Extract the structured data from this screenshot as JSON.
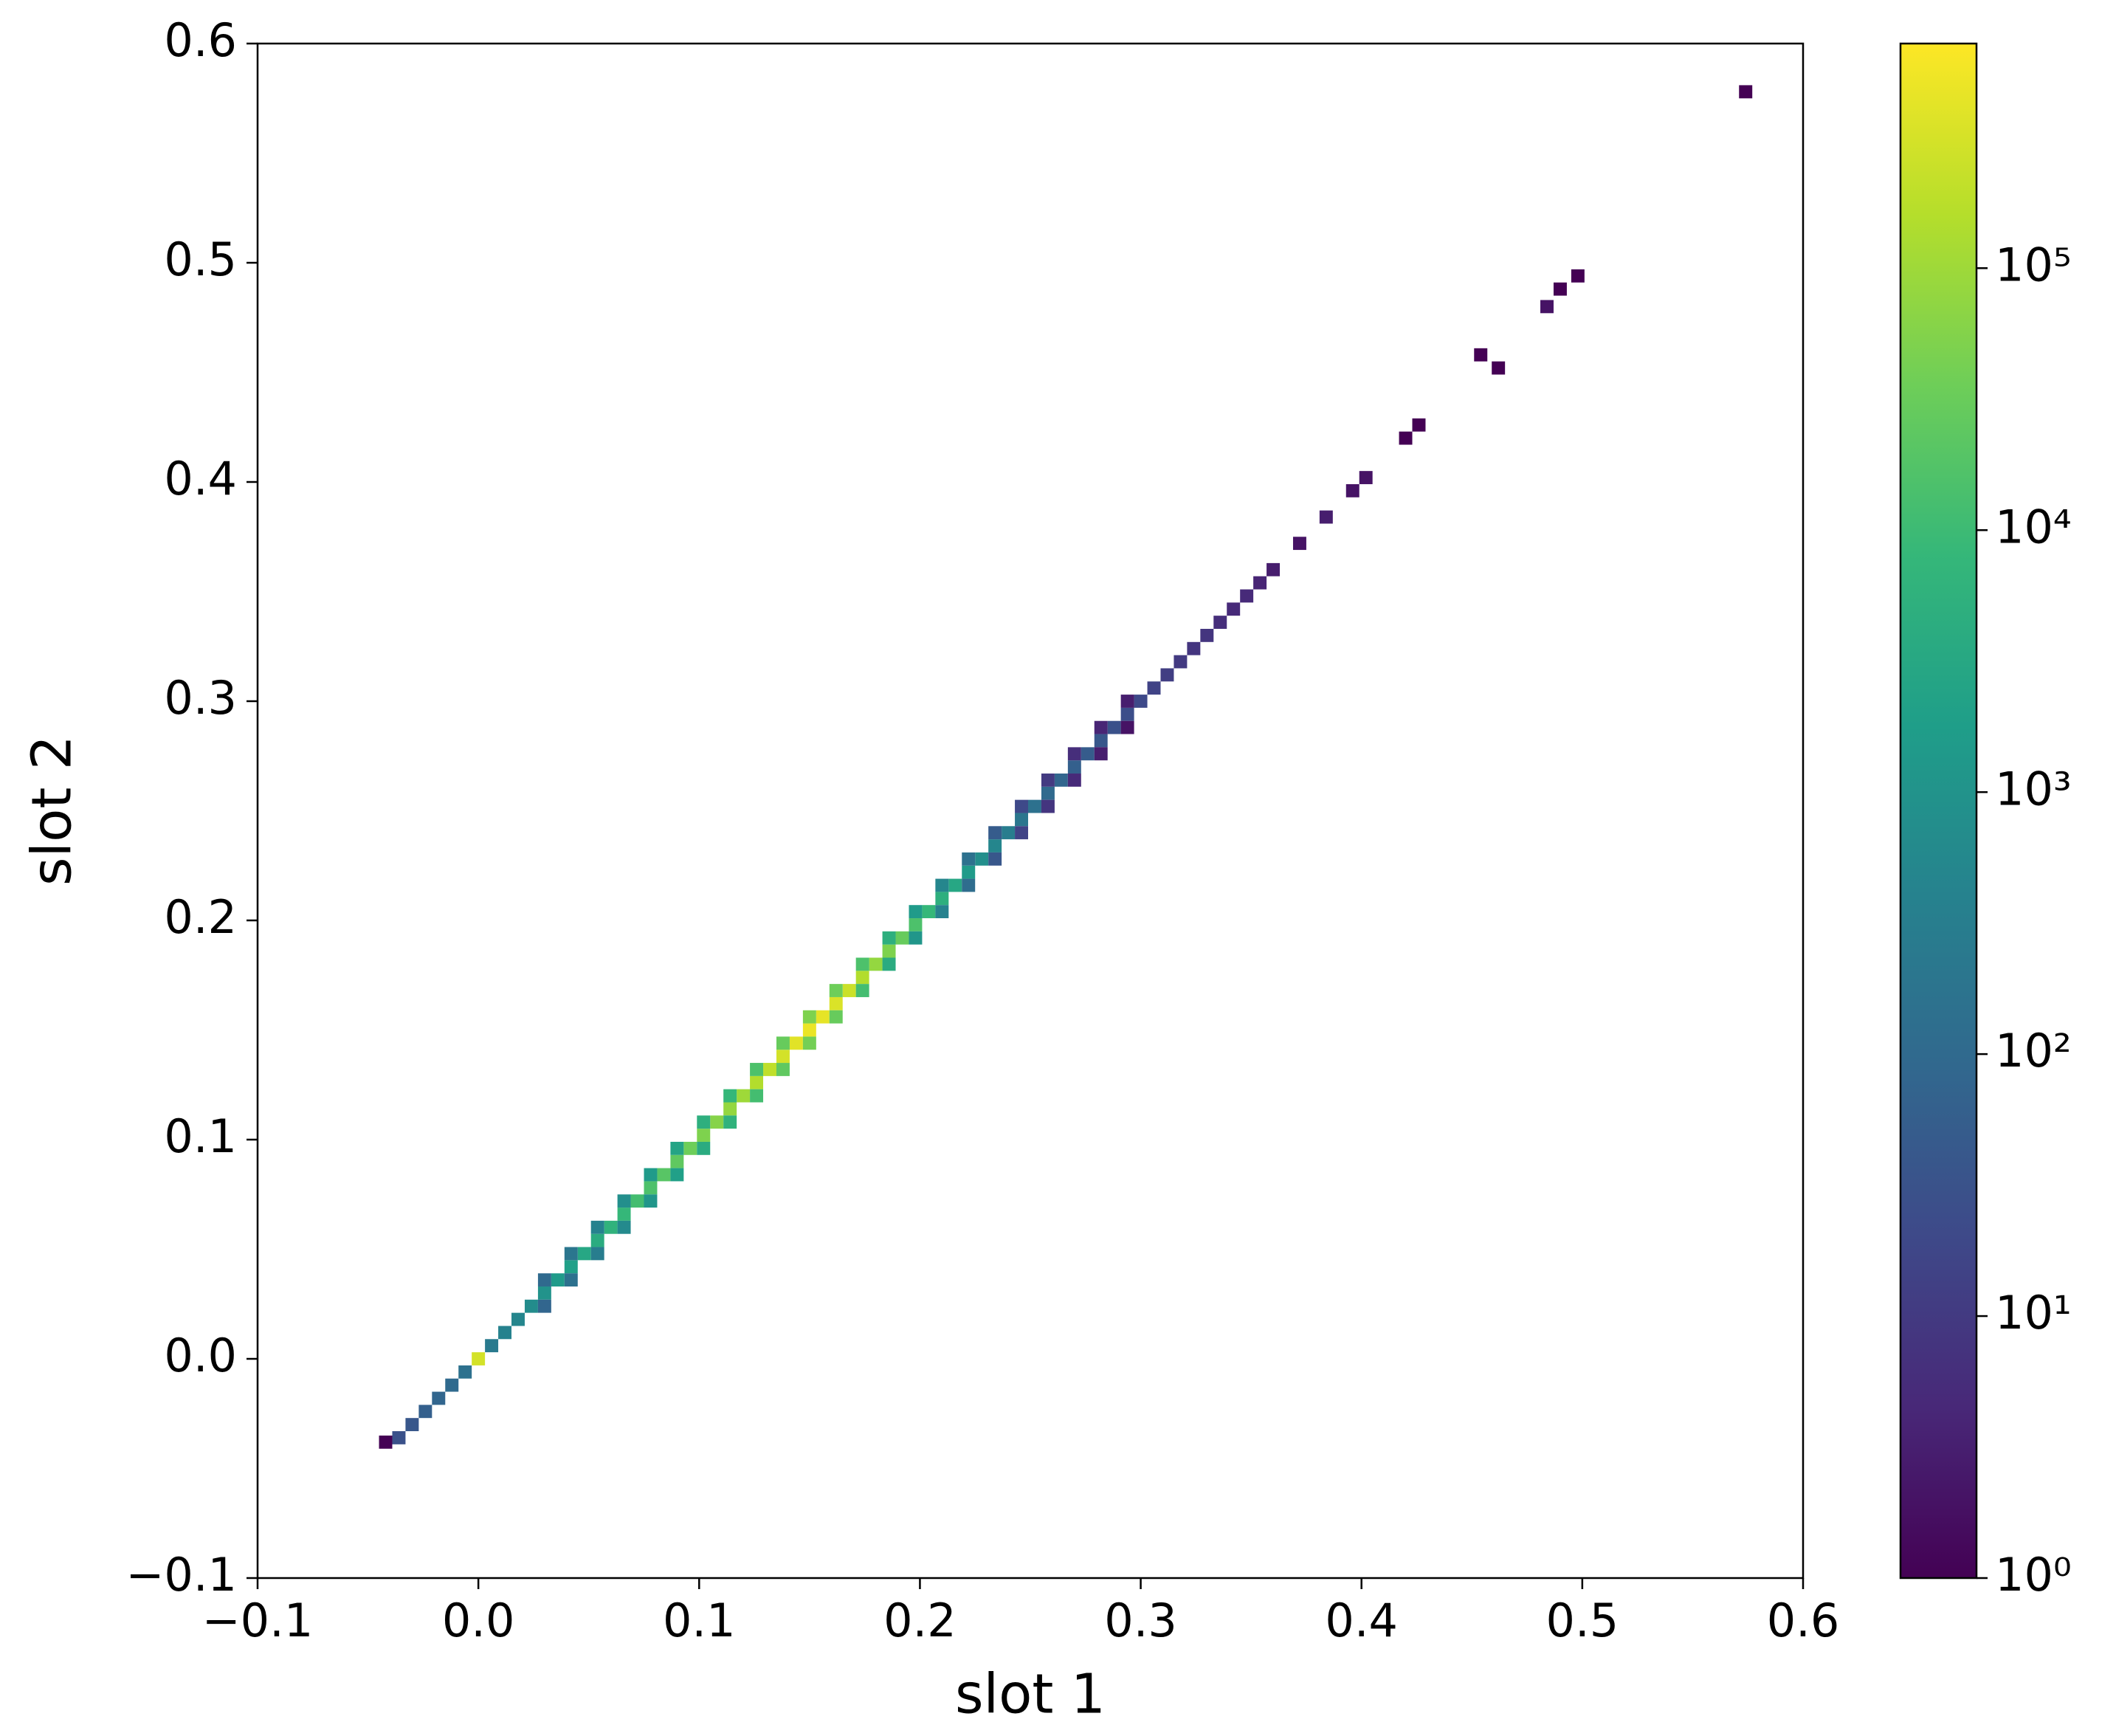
{
  "chart_data": {
    "type": "hist2d",
    "x_label": "slot 1",
    "y_label": "slot 2",
    "xlim": [
      -0.1,
      0.6
    ],
    "ylim": [
      -0.1,
      0.6
    ],
    "xticks": [
      {
        "value": -0.1,
        "label": "−0.1"
      },
      {
        "value": 0,
        "label": "0.0"
      },
      0.1,
      0.2,
      0.3,
      0.4,
      0.5,
      0.6
    ],
    "yticks": [
      {
        "value": -0.1,
        "label": "−0.1"
      },
      {
        "value": 0,
        "label": "0.0"
      },
      0.1,
      0.2,
      0.3,
      0.4,
      0.5,
      0.6
    ],
    "bin_width": 0.006,
    "colormap": "viridis",
    "color_scale": "log",
    "clim": [
      1,
      720000
    ],
    "cticks": [
      {
        "value": 1,
        "label": "10⁰"
      },
      {
        "value": 10,
        "label": "10¹"
      },
      {
        "value": 100,
        "label": "10²"
      },
      {
        "value": 1000,
        "label": "10³"
      },
      {
        "value": 10000,
        "label": "10⁴"
      },
      {
        "value": 100000,
        "label": "10⁵"
      }
    ],
    "x": [
      -0.036,
      -0.03,
      -0.024,
      -0.018,
      -0.012,
      -0.006,
      0.0,
      0.006,
      0.012,
      0.018,
      0.024,
      0.03,
      0.036,
      0.042,
      0.048,
      0.054,
      0.06,
      0.066,
      0.072,
      0.078,
      0.084,
      0.09,
      0.096,
      0.102,
      0.108,
      0.114,
      0.12,
      0.126,
      0.132,
      0.138,
      0.144,
      0.15,
      0.156,
      0.162,
      0.168,
      0.174,
      0.18,
      0.186,
      0.192,
      0.198,
      0.204,
      0.21,
      0.216,
      0.222,
      0.228,
      0.234,
      0.24,
      0.246,
      0.252,
      0.258,
      0.264,
      0.27,
      0.276,
      0.282,
      0.288,
      0.294,
      0.3,
      0.306,
      0.312,
      0.318,
      0.324,
      0.33,
      0.336,
      0.342,
      0.348,
      0.354,
      0.36,
      0.372,
      0.384,
      0.396,
      0.402,
      0.42,
      0.426,
      -0.042,
      0.454,
      0.462,
      0.484,
      0.49,
      0.498,
      0.574,
      0.03,
      0.042,
      0.054,
      0.066,
      0.078,
      0.09,
      0.102,
      0.114,
      0.126,
      0.138,
      0.15,
      0.162,
      0.174,
      0.186,
      0.198,
      0.21,
      0.222,
      0.234,
      0.246,
      0.258,
      0.27,
      0.282,
      0.294,
      0.03,
      0.042,
      0.054,
      0.066,
      0.078,
      0.09,
      0.102,
      0.114,
      0.126,
      0.138,
      0.15,
      0.162,
      0.174,
      0.186,
      0.198,
      0.21,
      0.222,
      0.234,
      0.246,
      0.258,
      0.27,
      0.282,
      0.294
    ],
    "y": [
      -0.036,
      -0.03,
      -0.024,
      -0.018,
      -0.012,
      -0.006,
      0.0,
      0.006,
      0.012,
      0.018,
      0.024,
      0.03,
      0.036,
      0.042,
      0.048,
      0.054,
      0.06,
      0.066,
      0.072,
      0.078,
      0.084,
      0.09,
      0.096,
      0.102,
      0.108,
      0.114,
      0.12,
      0.126,
      0.132,
      0.138,
      0.144,
      0.15,
      0.156,
      0.162,
      0.168,
      0.174,
      0.18,
      0.186,
      0.192,
      0.198,
      0.204,
      0.21,
      0.216,
      0.222,
      0.228,
      0.234,
      0.24,
      0.246,
      0.252,
      0.258,
      0.264,
      0.27,
      0.276,
      0.282,
      0.288,
      0.294,
      0.3,
      0.306,
      0.312,
      0.318,
      0.324,
      0.33,
      0.336,
      0.342,
      0.348,
      0.354,
      0.36,
      0.372,
      0.384,
      0.396,
      0.402,
      0.42,
      0.426,
      -0.038,
      0.458,
      0.452,
      0.48,
      0.488,
      0.494,
      0.578,
      0.036,
      0.048,
      0.06,
      0.072,
      0.084,
      0.096,
      0.108,
      0.12,
      0.132,
      0.144,
      0.156,
      0.168,
      0.18,
      0.192,
      0.204,
      0.216,
      0.228,
      0.24,
      0.252,
      0.264,
      0.276,
      0.288,
      0.3,
      0.024,
      0.036,
      0.048,
      0.06,
      0.072,
      0.084,
      0.096,
      0.108,
      0.12,
      0.132,
      0.144,
      0.156,
      0.168,
      0.18,
      0.192,
      0.204,
      0.216,
      0.228,
      0.24,
      0.252,
      0.264,
      0.276,
      0.288
    ],
    "values": [
      30,
      40,
      60,
      80,
      100,
      150,
      300000,
      250,
      400,
      500,
      700,
      1000,
      1500,
      2000,
      3000,
      4000,
      6000,
      8000,
      12000,
      15000,
      20000,
      25000,
      35000,
      50000,
      60000,
      80000,
      100000,
      150000,
      200000,
      300000,
      400000,
      500000,
      450000,
      350000,
      250000,
      150000,
      80000,
      50000,
      30000,
      15000,
      8000,
      5000,
      3000,
      1500,
      800,
      500,
      300,
      200,
      150,
      100,
      80,
      60,
      50,
      40,
      30,
      25,
      20,
      15,
      12,
      10,
      8,
      8,
      6,
      5,
      5,
      4,
      3,
      2,
      3,
      2,
      2,
      1,
      1,
      1,
      1,
      1,
      2,
      1,
      1,
      1,
      100,
      200,
      400,
      800,
      1500,
      2500,
      5000,
      8000,
      15000,
      30000,
      50000,
      35000,
      15000,
      5000,
      1500,
      500,
      150,
      50,
      20,
      10,
      6,
      4,
      3,
      80,
      150,
      300,
      600,
      1200,
      2000,
      4000,
      6000,
      12000,
      25000,
      40000,
      30000,
      12000,
      4000,
      1200,
      400,
      120,
      40,
      15,
      8,
      5,
      3,
      2
    ]
  }
}
